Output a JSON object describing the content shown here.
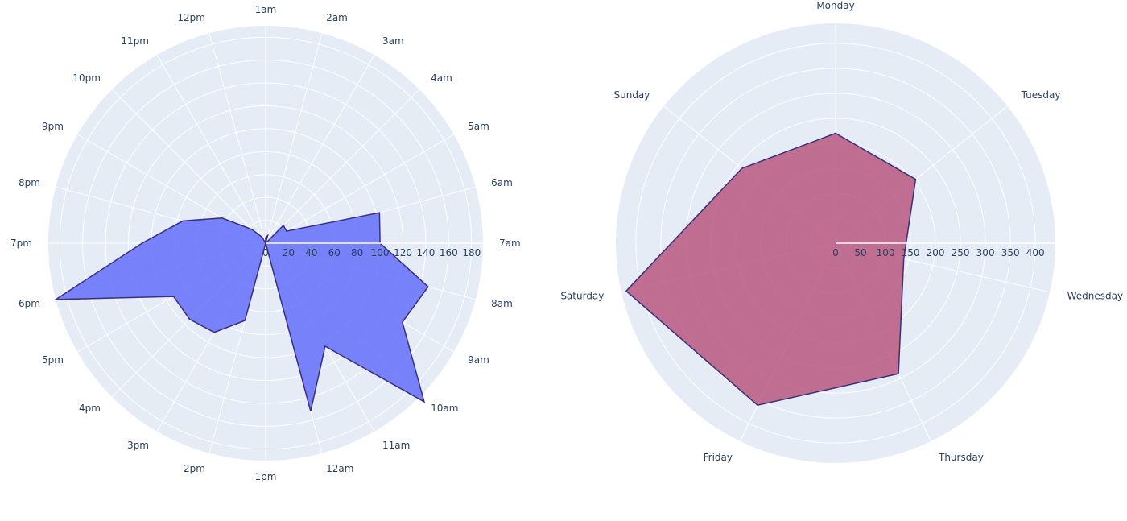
{
  "chart_data": [
    {
      "type": "radar",
      "theta": [
        "1am",
        "2am",
        "3am",
        "4am",
        "5am",
        "6am",
        "7am",
        "8am",
        "9am",
        "10am",
        "11am",
        "12am",
        "1pm",
        "2pm",
        "3pm",
        "4pm",
        "5pm",
        "6pm",
        "7pm",
        "8pm",
        "9pm",
        "10pm",
        "11pm",
        "12pm"
      ],
      "r": [
        5,
        7,
        0,
        22,
        21,
        103,
        100,
        147,
        138,
        196,
        104,
        152,
        0,
        70,
        90,
        94,
        93,
        190,
        108,
        75,
        44,
        17,
        6,
        0
      ],
      "radial_ticks": [
        "0",
        "20",
        "40",
        "60",
        "80",
        "100",
        "120",
        "140",
        "160",
        "180"
      ],
      "radial_range": [
        0,
        190
      ],
      "fill_color": "#636efa",
      "line_color": "#3b2f7a"
    },
    {
      "type": "radar",
      "theta": [
        "Monday",
        "Tuesday",
        "Wednesday",
        "Thursday",
        "Friday",
        "Saturday",
        "Sunday"
      ],
      "r": [
        220,
        205,
        140,
        290,
        360,
        430,
        240
      ],
      "radial_ticks": [
        "0",
        "50",
        "100",
        "150",
        "200",
        "250",
        "300",
        "350",
        "400"
      ],
      "radial_range": [
        0,
        440
      ],
      "fill_color": "#b9577f",
      "line_color": "#3b2f7a"
    }
  ]
}
